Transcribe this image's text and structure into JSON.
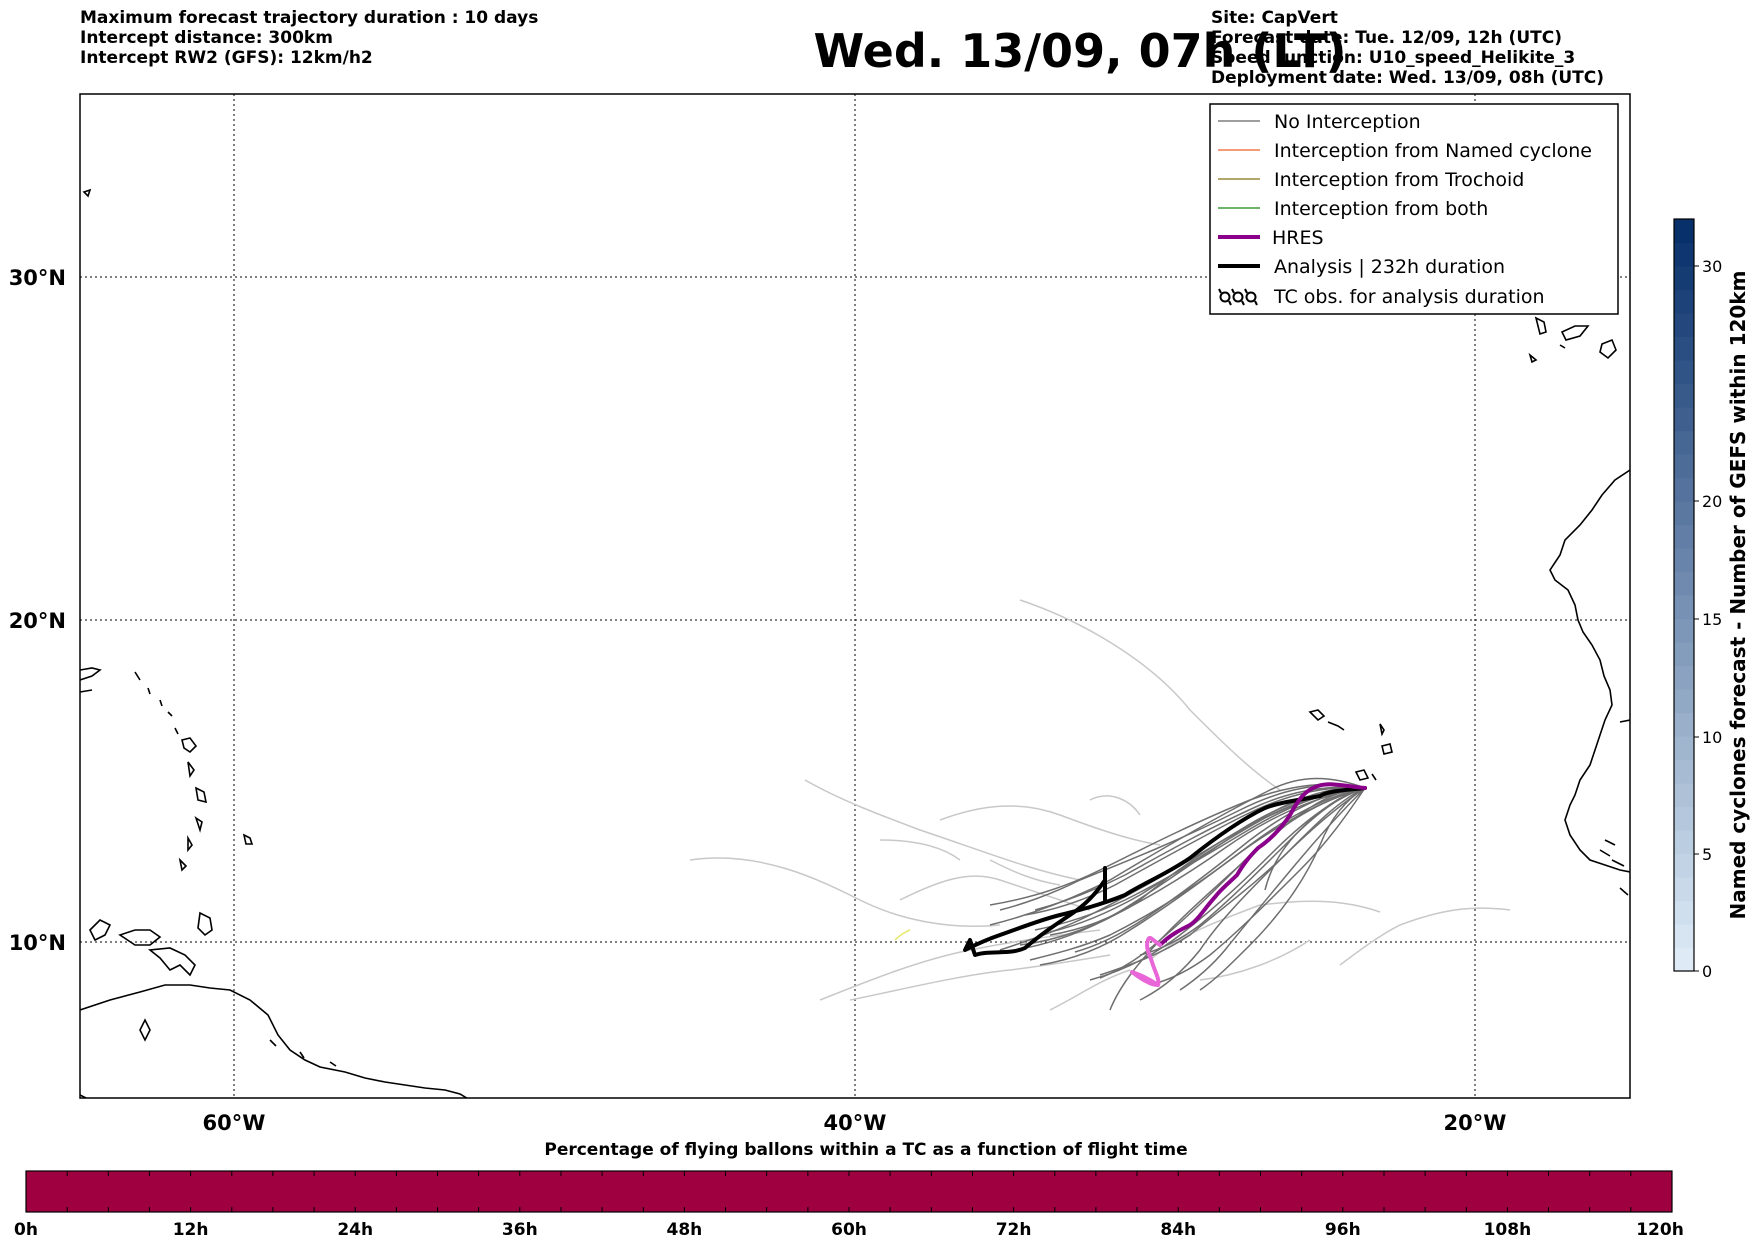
{
  "header": {
    "title": "Wed. 13/09, 07h (LT)",
    "left_lines": [
      "Maximum forecast trajectory duration : 10 days",
      "Intercept distance: 300km",
      "Intercept RW2 (GFS):  12km/h2"
    ],
    "right_lines": [
      "Site: CapVert",
      "Forecast date: Tue. 12/09, 12h (UTC)",
      "Speed function: U10_speed_Helikite_3",
      "Deployment date: Wed. 13/09, 08h (UTC)"
    ]
  },
  "map": {
    "lat_labels": [
      "30°N",
      "20°N",
      "10°N"
    ],
    "lon_labels": [
      "60°W",
      "40°W",
      "20°W"
    ],
    "gridlines": "dotted"
  },
  "legend": {
    "items": [
      {
        "label": "No Interception",
        "color": "#7f7f7f",
        "kind": "line-thin"
      },
      {
        "label": "Interception from Named cyclone",
        "color": "#f07a4a",
        "kind": "line-thin"
      },
      {
        "label": "Interception from Trochoid",
        "color": "#9a8a3a",
        "kind": "line-thin"
      },
      {
        "label": "Interception from both",
        "color": "#3c9a3c",
        "kind": "line-thin"
      },
      {
        "label": "HRES",
        "color": "#8b008b",
        "kind": "line-thick"
      },
      {
        "label": "Analysis | 232h duration",
        "color": "#000000",
        "kind": "line-thick"
      },
      {
        "label": "TC obs. for analysis duration",
        "color": "#000000",
        "kind": "tc-symbol"
      }
    ]
  },
  "colorbar_right": {
    "label": "Named cyclones forecast - Number of GEFS within 120km",
    "ticks": [
      "0",
      "5",
      "10",
      "15",
      "20",
      "30"
    ]
  },
  "colorbar_bottom": {
    "title": "Percentage of flying ballons within a TC as a function of flight time",
    "ticks": [
      "0h",
      "12h",
      "24h",
      "36h",
      "48h",
      "60h",
      "72h",
      "84h",
      "96h",
      "108h",
      "120h"
    ],
    "color": "#9e0040"
  }
}
